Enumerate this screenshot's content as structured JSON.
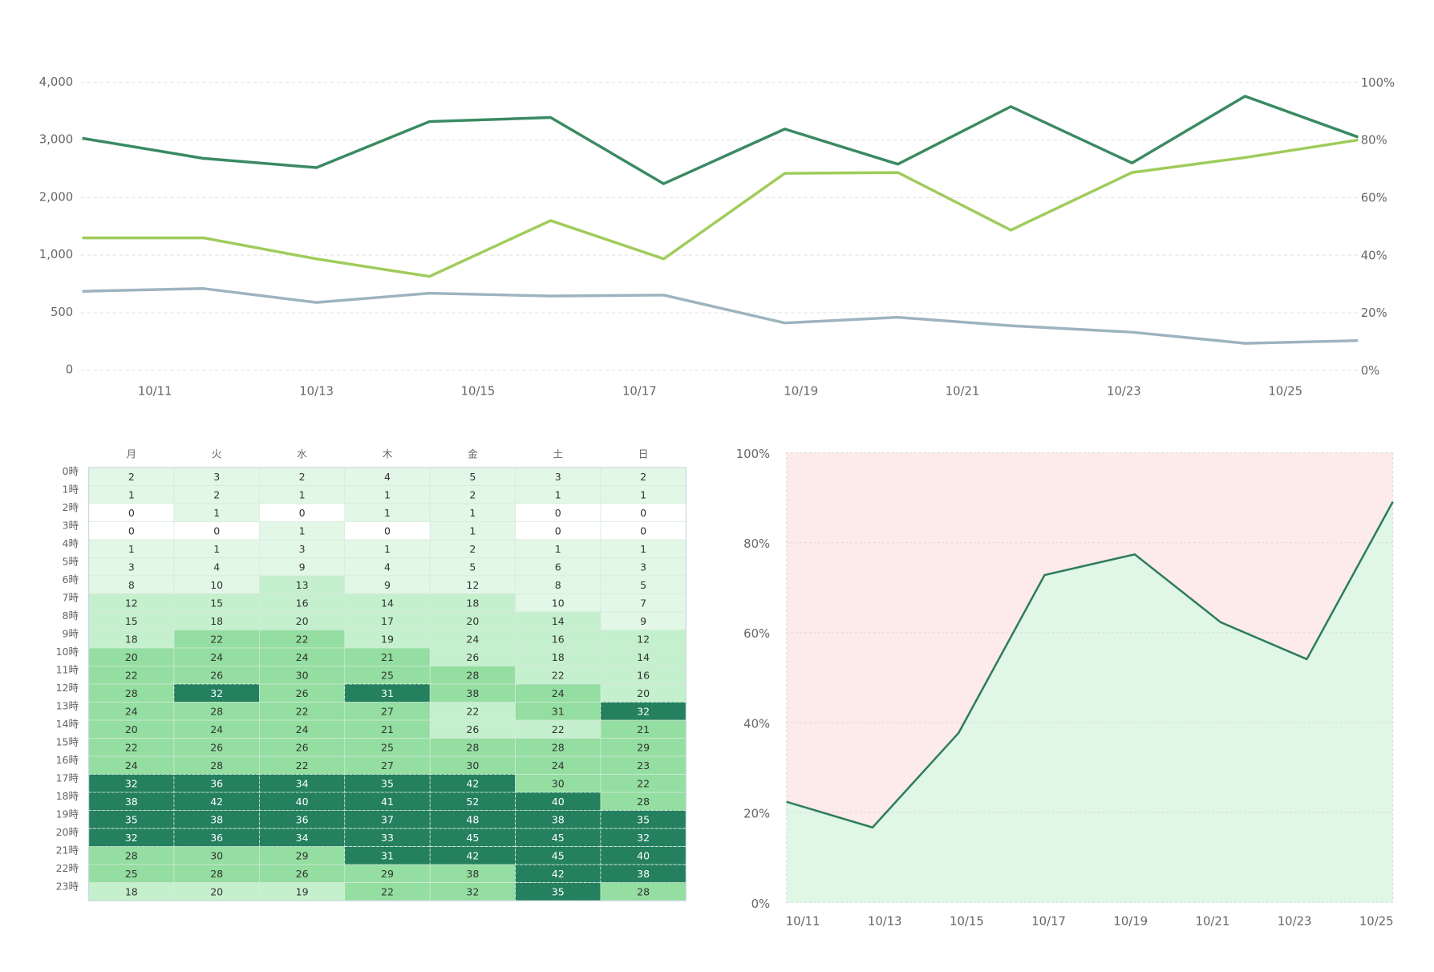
{
  "chart_data": [
    {
      "type": "line",
      "x": [
        10.1,
        11.6,
        13.0,
        14.4,
        15.9,
        17.3,
        18.8,
        20.2,
        21.6,
        23.1,
        24.5,
        25.9
      ],
      "xlim": [
        10.1,
        25.9
      ],
      "xticks": [
        {
          "value": 11,
          "label": "10/11"
        },
        {
          "value": 13,
          "label": "10/13"
        },
        {
          "value": 15,
          "label": "10/15"
        },
        {
          "value": 17,
          "label": "10/17"
        },
        {
          "value": 19,
          "label": "10/19"
        },
        {
          "value": 21,
          "label": "10/21"
        },
        {
          "value": 23,
          "label": "10/23"
        },
        {
          "value": 25,
          "label": "10/25"
        }
      ],
      "ylim": [
        0,
        4000
      ],
      "yticks": [
        0,
        500,
        {
          "value": 1000,
          "label": "1,000"
        },
        {
          "value": 2000,
          "label": "2,000"
        },
        {
          "value": 3000,
          "label": "3,000"
        },
        {
          "value": 4000,
          "label": "4,000"
        }
      ],
      "y2lim": [
        0,
        100
      ],
      "y2ticks": [
        {
          "value": 0,
          "label": "0%"
        },
        {
          "value": 20,
          "label": "20%"
        },
        {
          "value": 40,
          "label": "40%"
        },
        {
          "value": 60,
          "label": "60%"
        },
        {
          "value": 80,
          "label": "80%"
        },
        {
          "value": 100,
          "label": "100%"
        }
      ],
      "grid": true,
      "series": [
        {
          "color": "#3a8a62",
          "values": [
            3030,
            2680,
            2520,
            3320,
            3390,
            2240,
            3190,
            2580,
            3580,
            2600,
            3760,
            3050
          ]
        },
        {
          "color": "#9fcc5a",
          "axis": "y2",
          "values": [
            46,
            46,
            38.7,
            32.6,
            52,
            38.7,
            68.4,
            68.7,
            48.7,
            68.7,
            73.9,
            80
          ]
        },
        {
          "color": "#9db4bf",
          "values": [
            686,
            710,
            589,
            669,
            645,
            653,
            411,
            460,
            387,
            331,
            234,
            258
          ]
        }
      ]
    },
    {
      "type": "heatmap",
      "x_categories": [
        "月",
        "火",
        "水",
        "木",
        "金",
        "土",
        "日"
      ],
      "y_categories": [
        "0時",
        "1時",
        "2時",
        "3時",
        "4時",
        "5時",
        "6時",
        "7時",
        "8時",
        "9時",
        "10時",
        "11時",
        "12時",
        "13時",
        "14時",
        "15時",
        "16時",
        "17時",
        "18時",
        "19時",
        "20時",
        "21時",
        "22時",
        "23時"
      ],
      "colors": [
        "#ffffff",
        "#e2f7e6",
        "#c5f0cd",
        "#93dea0",
        "#24805f"
      ],
      "values": [
        [
          2,
          3,
          2,
          4,
          5,
          3,
          2
        ],
        [
          1,
          2,
          1,
          1,
          2,
          1,
          1
        ],
        [
          0,
          1,
          0,
          1,
          1,
          0,
          0
        ],
        [
          0,
          0,
          1,
          0,
          1,
          0,
          0
        ],
        [
          1,
          1,
          3,
          1,
          2,
          1,
          1
        ],
        [
          3,
          4,
          9,
          4,
          5,
          6,
          3
        ],
        [
          8,
          10,
          13,
          9,
          12,
          8,
          5
        ],
        [
          12,
          15,
          16,
          14,
          18,
          10,
          7
        ],
        [
          15,
          18,
          20,
          17,
          20,
          14,
          9
        ],
        [
          18,
          22,
          22,
          19,
          24,
          16,
          12
        ],
        [
          20,
          24,
          24,
          21,
          26,
          18,
          14
        ],
        [
          22,
          26,
          30,
          25,
          28,
          22,
          16
        ],
        [
          28,
          32,
          26,
          31,
          38,
          24,
          20
        ],
        [
          24,
          28,
          22,
          27,
          22,
          31,
          32
        ],
        [
          20,
          24,
          24,
          21,
          26,
          22,
          21
        ],
        [
          22,
          26,
          26,
          25,
          28,
          28,
          29
        ],
        [
          24,
          28,
          22,
          27,
          30,
          24,
          23
        ],
        [
          32,
          36,
          34,
          35,
          42,
          30,
          22
        ],
        [
          38,
          42,
          40,
          41,
          52,
          40,
          28
        ],
        [
          35,
          38,
          36,
          37,
          48,
          38,
          35
        ],
        [
          32,
          36,
          34,
          33,
          45,
          45,
          32
        ],
        [
          28,
          30,
          29,
          31,
          42,
          45,
          40
        ],
        [
          25,
          28,
          26,
          29,
          38,
          42,
          38
        ],
        [
          18,
          20,
          19,
          22,
          32,
          35,
          28
        ]
      ]
    },
    {
      "type": "area",
      "x": [
        10.6,
        12.7,
        14.8,
        16.9,
        19.1,
        21.2,
        23.3,
        25.4
      ],
      "xlim": [
        10.6,
        25.4
      ],
      "xticks": [
        {
          "value": 11,
          "label": "10/11"
        },
        {
          "value": 13,
          "label": "10/13"
        },
        {
          "value": 15,
          "label": "10/15"
        },
        {
          "value": 17,
          "label": "10/17"
        },
        {
          "value": 19,
          "label": "10/19"
        },
        {
          "value": 21,
          "label": "10/21"
        },
        {
          "value": 23,
          "label": "10/23"
        },
        {
          "value": 25,
          "label": "10/25"
        }
      ],
      "ylim": [
        0,
        100
      ],
      "yticks": [
        {
          "value": 0,
          "label": "0%"
        },
        {
          "value": 20,
          "label": "20%"
        },
        {
          "value": 40,
          "label": "40%"
        },
        {
          "value": 60,
          "label": "60%"
        },
        {
          "value": 80,
          "label": "80%"
        },
        {
          "value": 100,
          "label": "100%"
        }
      ],
      "grid": true,
      "color": "#2e7d5b",
      "fill": "#e0f7e6",
      "background": "#fdeaea",
      "values": [
        22.4,
        16.7,
        37.7,
        72.8,
        77.4,
        62.3,
        54.1,
        89.1
      ]
    }
  ]
}
